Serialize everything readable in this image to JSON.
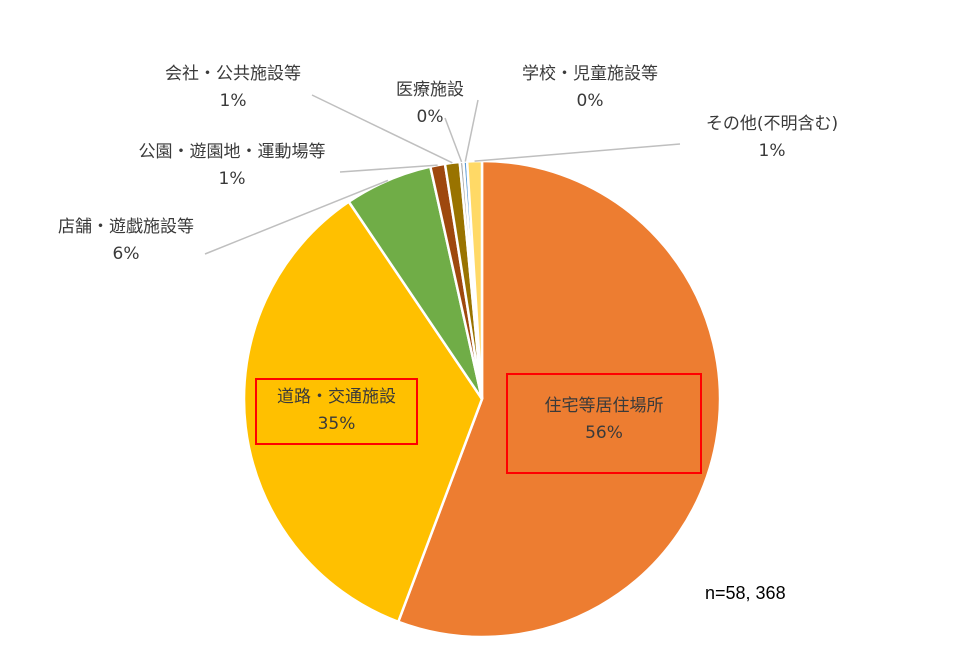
{
  "chart_data": {
    "type": "pie",
    "title": "",
    "slices": [
      {
        "name": "住宅等居住場所",
        "value": 56,
        "label": "56%",
        "color": "#ed7d31"
      },
      {
        "name": "道路・交通施設",
        "value": 35,
        "label": "35%",
        "color": "#ffc000"
      },
      {
        "name": "店舗・遊戯施設等",
        "value": 6,
        "label": "6%",
        "color": "#70ad47"
      },
      {
        "name": "公園・遊園地・運動場等",
        "value": 1,
        "label": "1%",
        "color": "#9e480e"
      },
      {
        "name": "会社・公共施設等",
        "value": 1,
        "label": "1%",
        "color": "#997300"
      },
      {
        "name": "医療施設",
        "value": 0,
        "label": "0%",
        "color": "#a5a5a5"
      },
      {
        "name": "学校・児童施設等",
        "value": 0,
        "label": "0%",
        "color": "#5b9bd5"
      },
      {
        "name": "その他(不明含む)",
        "value": 1,
        "label": "1%",
        "color": "#ffd966"
      }
    ],
    "legend": "none"
  },
  "sample_size": "n=58, 368"
}
